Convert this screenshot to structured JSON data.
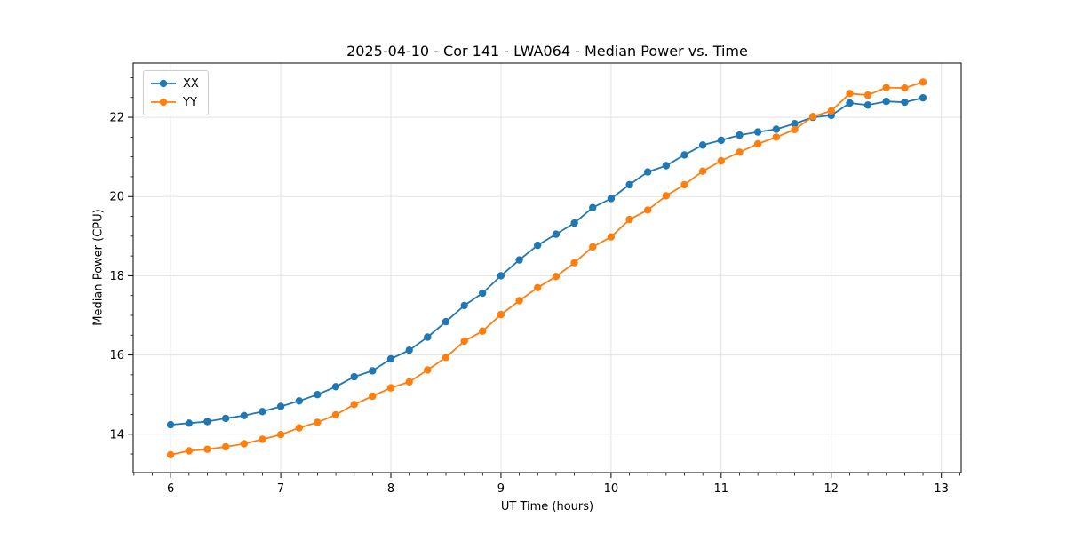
{
  "chart_data": {
    "type": "line",
    "title": "2025-04-10 - Cor 141 - LWA064 - Median Power vs. Time",
    "xlabel": "UT Time (hours)",
    "ylabel": "Median Power (CPU)",
    "xlim": [
      5.66,
      13.18
    ],
    "ylim": [
      13.03,
      23.37
    ],
    "xticks": [
      6,
      7,
      8,
      9,
      10,
      11,
      12,
      13
    ],
    "yticks": [
      14,
      16,
      18,
      20,
      22
    ],
    "x_minor_step": 0.16667,
    "y_minor_step": 0.5,
    "grid": true,
    "grid_color": "#e3e3e3",
    "spine_color": "#000000",
    "legend_position": "upper-left",
    "x": [
      6.0,
      6.167,
      6.333,
      6.5,
      6.667,
      6.833,
      7.0,
      7.167,
      7.333,
      7.5,
      7.667,
      7.833,
      8.0,
      8.167,
      8.333,
      8.5,
      8.667,
      8.833,
      9.0,
      9.167,
      9.333,
      9.5,
      9.667,
      9.833,
      10.0,
      10.167,
      10.333,
      10.5,
      10.667,
      10.833,
      11.0,
      11.167,
      11.333,
      11.5,
      11.667,
      11.833,
      12.0,
      12.167,
      12.333,
      12.5,
      12.667,
      12.833
    ],
    "series": [
      {
        "name": "XX",
        "color": "#1f77b4",
        "marker": "circle",
        "values": [
          14.24,
          14.28,
          14.32,
          14.4,
          14.47,
          14.57,
          14.7,
          14.84,
          15.0,
          15.2,
          15.45,
          15.6,
          15.9,
          16.12,
          16.45,
          16.84,
          17.25,
          17.56,
          18.0,
          18.4,
          18.77,
          19.05,
          19.33,
          19.72,
          19.95,
          20.3,
          20.62,
          20.78,
          21.05,
          21.3,
          21.42,
          21.55,
          21.63,
          21.7,
          21.84,
          22.0,
          22.05,
          22.36,
          22.31,
          22.4,
          22.38,
          22.49
        ]
      },
      {
        "name": "YY",
        "color": "#ff7f0e",
        "marker": "circle",
        "values": [
          13.48,
          13.58,
          13.62,
          13.68,
          13.76,
          13.87,
          13.99,
          14.16,
          14.3,
          14.49,
          14.75,
          14.96,
          15.17,
          15.32,
          15.62,
          15.94,
          16.35,
          16.6,
          17.02,
          17.37,
          17.7,
          17.98,
          18.33,
          18.73,
          18.98,
          19.42,
          19.66,
          20.02,
          20.3,
          20.64,
          20.9,
          21.12,
          21.33,
          21.5,
          21.69,
          22.02,
          22.16,
          22.6,
          22.56,
          22.75,
          22.74,
          22.89
        ]
      }
    ]
  }
}
